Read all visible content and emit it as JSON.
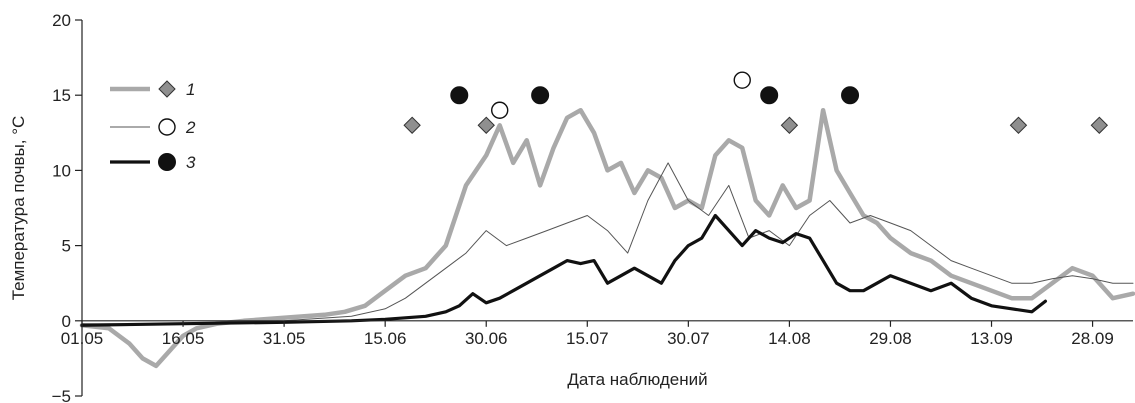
{
  "chart_data": {
    "type": "line",
    "xlabel": "Дата наблюдений",
    "ylabel": "Температура почвы, °C",
    "ylim": [
      -5,
      20
    ],
    "yticks": [
      -5,
      0,
      5,
      10,
      15,
      20
    ],
    "xlim": [
      "2012-05-01",
      "2012-10-04"
    ],
    "xticks": [
      "01.05",
      "16.05",
      "31.05",
      "15.06",
      "30.06",
      "15.07",
      "30.07",
      "14.08",
      "29.08",
      "13.09",
      "28.09"
    ],
    "xtick_dates": [
      "2012-05-01",
      "2012-05-16",
      "2012-05-31",
      "2012-06-15",
      "2012-06-30",
      "2012-07-15",
      "2012-07-30",
      "2012-08-14",
      "2012-08-29",
      "2012-09-13",
      "2012-09-28"
    ],
    "grid": false,
    "legend_position": "top-left",
    "series": [
      {
        "name": "1",
        "line_style": "thick-light-gray",
        "color": "#a9a9a9",
        "marker": "diamond",
        "x": [
          "2012-05-01",
          "2012-05-05",
          "2012-05-08",
          "2012-05-10",
          "2012-05-12",
          "2012-05-14",
          "2012-05-16",
          "2012-05-18",
          "2012-05-21",
          "2012-05-25",
          "2012-05-28",
          "2012-05-31",
          "2012-06-03",
          "2012-06-06",
          "2012-06-09",
          "2012-06-12",
          "2012-06-15",
          "2012-06-18",
          "2012-06-21",
          "2012-06-24",
          "2012-06-27",
          "2012-06-30",
          "2012-07-02",
          "2012-07-04",
          "2012-07-06",
          "2012-07-08",
          "2012-07-10",
          "2012-07-12",
          "2012-07-14",
          "2012-07-16",
          "2012-07-18",
          "2012-07-20",
          "2012-07-22",
          "2012-07-24",
          "2012-07-26",
          "2012-07-28",
          "2012-07-30",
          "2012-08-01",
          "2012-08-03",
          "2012-08-05",
          "2012-08-07",
          "2012-08-09",
          "2012-08-11",
          "2012-08-13",
          "2012-08-15",
          "2012-08-17",
          "2012-08-19",
          "2012-08-21",
          "2012-08-23",
          "2012-08-25",
          "2012-08-27",
          "2012-08-29",
          "2012-09-01",
          "2012-09-04",
          "2012-09-07",
          "2012-09-10",
          "2012-09-13",
          "2012-09-16",
          "2012-09-19",
          "2012-09-22",
          "2012-09-25",
          "2012-09-28",
          "2012-10-01",
          "2012-10-04"
        ],
        "values": [
          -0.3,
          -0.5,
          -1.5,
          -2.5,
          -3.0,
          -2.0,
          -1.0,
          -0.5,
          -0.2,
          0.0,
          0.1,
          0.2,
          0.3,
          0.4,
          0.6,
          1.0,
          2.0,
          3.0,
          3.5,
          5.0,
          9.0,
          11.0,
          13.0,
          10.5,
          12.0,
          9.0,
          11.5,
          13.5,
          14.0,
          12.5,
          10.0,
          10.5,
          8.5,
          10.0,
          9.5,
          7.5,
          8.0,
          7.5,
          11.0,
          12.0,
          11.5,
          8.0,
          7.0,
          9.0,
          7.5,
          8.0,
          14.0,
          10.0,
          8.5,
          7.0,
          6.5,
          5.5,
          4.5,
          4.0,
          3.0,
          2.5,
          2.0,
          1.5,
          1.5,
          2.5,
          3.5,
          3.0,
          1.5,
          1.8
        ]
      },
      {
        "name": "2",
        "line_style": "thin-dark",
        "color": "#555555",
        "marker": "open-circle",
        "x": [
          "2012-05-01",
          "2012-05-15",
          "2012-05-31",
          "2012-06-10",
          "2012-06-15",
          "2012-06-18",
          "2012-06-21",
          "2012-06-24",
          "2012-06-27",
          "2012-06-30",
          "2012-07-03",
          "2012-07-06",
          "2012-07-09",
          "2012-07-12",
          "2012-07-15",
          "2012-07-18",
          "2012-07-21",
          "2012-07-24",
          "2012-07-27",
          "2012-07-30",
          "2012-08-02",
          "2012-08-05",
          "2012-08-08",
          "2012-08-11",
          "2012-08-14",
          "2012-08-17",
          "2012-08-20",
          "2012-08-23",
          "2012-08-26",
          "2012-08-29",
          "2012-09-01",
          "2012-09-04",
          "2012-09-07",
          "2012-09-10",
          "2012-09-13",
          "2012-09-16",
          "2012-09-19",
          "2012-09-22",
          "2012-09-25",
          "2012-09-28",
          "2012-10-01",
          "2012-10-04"
        ],
        "values": [
          -0.2,
          -0.2,
          0.0,
          0.3,
          0.8,
          1.5,
          2.5,
          3.5,
          4.5,
          6.0,
          5.0,
          5.5,
          6.0,
          6.5,
          7.0,
          6.0,
          4.5,
          8.0,
          10.5,
          8.0,
          7.0,
          9.0,
          5.5,
          6.0,
          5.0,
          7.0,
          8.0,
          6.5,
          7.0,
          6.5,
          6.0,
          5.0,
          4.0,
          3.5,
          3.0,
          2.5,
          2.5,
          2.8,
          3.0,
          2.8,
          2.5,
          2.5
        ]
      },
      {
        "name": "3",
        "line_style": "thick-black",
        "color": "#111111",
        "marker": "filled-circle",
        "x": [
          "2012-05-01",
          "2012-05-15",
          "2012-05-31",
          "2012-06-10",
          "2012-06-15",
          "2012-06-18",
          "2012-06-21",
          "2012-06-24",
          "2012-06-26",
          "2012-06-28",
          "2012-06-30",
          "2012-07-02",
          "2012-07-04",
          "2012-07-06",
          "2012-07-08",
          "2012-07-10",
          "2012-07-12",
          "2012-07-14",
          "2012-07-16",
          "2012-07-18",
          "2012-07-20",
          "2012-07-22",
          "2012-07-24",
          "2012-07-26",
          "2012-07-28",
          "2012-07-30",
          "2012-08-01",
          "2012-08-03",
          "2012-08-05",
          "2012-08-07",
          "2012-08-09",
          "2012-08-11",
          "2012-08-13",
          "2012-08-15",
          "2012-08-17",
          "2012-08-19",
          "2012-08-21",
          "2012-08-23",
          "2012-08-25",
          "2012-08-27",
          "2012-08-29",
          "2012-09-01",
          "2012-09-04",
          "2012-09-07",
          "2012-09-10",
          "2012-09-13",
          "2012-09-16",
          "2012-09-19",
          "2012-09-21"
        ],
        "values": [
          -0.3,
          -0.2,
          -0.1,
          0.0,
          0.1,
          0.2,
          0.3,
          0.6,
          1.0,
          1.8,
          1.2,
          1.5,
          2.0,
          2.5,
          3.0,
          3.5,
          4.0,
          3.8,
          4.0,
          2.5,
          3.0,
          3.5,
          3.0,
          2.5,
          4.0,
          5.0,
          5.5,
          7.0,
          6.0,
          5.0,
          6.0,
          5.5,
          5.2,
          5.8,
          5.5,
          4.0,
          2.5,
          2.0,
          2.0,
          2.5,
          3.0,
          2.5,
          2.0,
          2.5,
          1.5,
          1.0,
          0.8,
          0.6,
          1.3
        ]
      }
    ],
    "markers": [
      {
        "series": "1",
        "shape": "diamond",
        "points": [
          [
            "2012-06-19",
            13
          ],
          [
            "2012-06-30",
            13
          ],
          [
            "2012-08-14",
            13
          ],
          [
            "2012-09-17",
            13
          ],
          [
            "2012-09-29",
            13
          ]
        ]
      },
      {
        "series": "2",
        "shape": "open-circle",
        "points": [
          [
            "2012-07-02",
            14
          ],
          [
            "2012-08-07",
            16
          ]
        ]
      },
      {
        "series": "3",
        "shape": "filled-circle",
        "points": [
          [
            "2012-06-26",
            15
          ],
          [
            "2012-07-08",
            15
          ],
          [
            "2012-08-11",
            15
          ],
          [
            "2012-08-23",
            15
          ]
        ]
      }
    ],
    "legend": [
      {
        "name": "1",
        "label": "1",
        "line_style": "thick-light-gray",
        "marker": "diamond"
      },
      {
        "name": "2",
        "label": "2",
        "line_style": "thin-dark",
        "marker": "open-circle"
      },
      {
        "name": "3",
        "label": "3",
        "line_style": "thick-black",
        "marker": "filled-circle"
      }
    ]
  }
}
